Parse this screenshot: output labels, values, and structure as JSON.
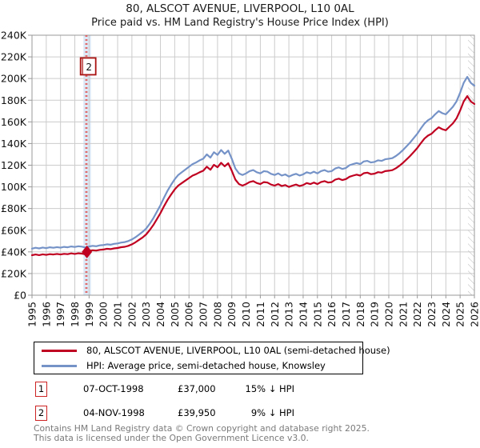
{
  "title": {
    "line1": "80, ALSCOT AVENUE, LIVERPOOL, L10 0AL",
    "line2": "Price paid vs. HM Land Registry's House Price Index (HPI)"
  },
  "chart_data": {
    "type": "line",
    "title": "80, ALSCOT AVENUE, LIVERPOOL, L10 0AL",
    "subtitle": "Price paid vs. HM Land Registry's House Price Index (HPI)",
    "xlim": [
      1995,
      2026
    ],
    "ylim": [
      0,
      240
    ],
    "x": {
      "start": 1995,
      "step": 0.25,
      "units": "year"
    },
    "y_units": "GBP thousands",
    "grid": true,
    "series": [
      {
        "name": "80, ALSCOT AVENUE, LIVERPOOL, L10 0AL (semi-detached house)",
        "color": "#c00020",
        "values": [
          36.9,
          37.6,
          37.0,
          37.7,
          37.2,
          37.9,
          37.6,
          38.1,
          37.6,
          38.2,
          37.9,
          38.6,
          38.1,
          38.7,
          38.4,
          37.7,
          41.0,
          41.5,
          41.2,
          41.9,
          42.2,
          42.8,
          42.5,
          43.2,
          43.6,
          44.3,
          44.7,
          45.6,
          47.0,
          48.8,
          51.1,
          53.3,
          56.1,
          60.2,
          64.7,
          70.2,
          75.7,
          82.1,
          88.0,
          93.0,
          97.6,
          101.2,
          103.5,
          105.8,
          108.1,
          110.4,
          111.7,
          113.5,
          114.9,
          118.6,
          115.8,
          120.4,
          118.1,
          122.2,
          119.0,
          121.8,
          114.9,
          106.7,
          102.6,
          101.2,
          102.6,
          104.4,
          105.3,
          103.5,
          102.6,
          104.4,
          104.0,
          102.1,
          101.2,
          102.6,
          100.8,
          101.7,
          99.9,
          101.2,
          102.1,
          100.8,
          101.7,
          103.5,
          102.6,
          104.0,
          102.6,
          104.4,
          105.3,
          104.0,
          104.4,
          106.7,
          107.6,
          106.3,
          107.2,
          109.4,
          110.4,
          111.3,
          110.4,
          112.6,
          113.1,
          111.7,
          112.2,
          113.6,
          113.1,
          114.5,
          114.9,
          115.4,
          117.2,
          119.5,
          122.2,
          125.4,
          128.6,
          132.2,
          135.9,
          140.4,
          144.6,
          147.3,
          149.1,
          152.3,
          155.0,
          153.2,
          152.3,
          155.5,
          158.7,
          163.3,
          170.5,
          178.8,
          183.8,
          178.8,
          176.5
        ]
      },
      {
        "name": "HPI: Average price, semi-detached house, Knowsley",
        "color": "#7693c8",
        "values": [
          43.0,
          43.8,
          43.2,
          44.0,
          43.4,
          44.2,
          43.8,
          44.4,
          43.9,
          44.6,
          44.2,
          45.0,
          44.5,
          45.2,
          44.8,
          44.0,
          45.0,
          45.6,
          45.2,
          46.0,
          46.3,
          47.0,
          46.6,
          47.4,
          47.8,
          48.6,
          49.0,
          50.0,
          51.5,
          53.5,
          56.0,
          58.5,
          61.5,
          66.0,
          71.0,
          77.0,
          83.0,
          90.0,
          96.5,
          102.0,
          107.0,
          111.0,
          113.5,
          116.0,
          118.5,
          121.0,
          122.5,
          124.5,
          126.0,
          130.0,
          127.0,
          132.0,
          129.5,
          134.0,
          130.5,
          133.5,
          126.0,
          117.0,
          112.5,
          111.0,
          112.5,
          114.5,
          115.5,
          113.5,
          112.5,
          114.5,
          114.0,
          112.0,
          111.0,
          112.5,
          110.5,
          111.5,
          109.5,
          111.0,
          112.0,
          110.5,
          111.5,
          113.5,
          112.5,
          114.0,
          112.5,
          114.5,
          115.5,
          114.0,
          114.5,
          117.0,
          118.0,
          116.5,
          117.5,
          120.0,
          121.0,
          122.0,
          121.0,
          123.5,
          124.0,
          122.5,
          123.0,
          124.5,
          124.0,
          125.5,
          126.0,
          126.5,
          128.5,
          131.0,
          134.0,
          137.5,
          141.0,
          145.0,
          149.0,
          154.0,
          158.5,
          161.5,
          163.5,
          167.0,
          170.0,
          168.0,
          167.0,
          170.5,
          174.0,
          179.0,
          187.0,
          196.0,
          201.5,
          196.0,
          193.5
        ]
      }
    ],
    "y_ticks": [
      {
        "v": 0,
        "label": "£0"
      },
      {
        "v": 20,
        "label": "£20K"
      },
      {
        "v": 40,
        "label": "£40K"
      },
      {
        "v": 60,
        "label": "£60K"
      },
      {
        "v": 80,
        "label": "£80K"
      },
      {
        "v": 100,
        "label": "£100K"
      },
      {
        "v": 120,
        "label": "£120K"
      },
      {
        "v": 140,
        "label": "£140K"
      },
      {
        "v": 160,
        "label": "£160K"
      },
      {
        "v": 180,
        "label": "£180K"
      },
      {
        "v": 200,
        "label": "£200K"
      },
      {
        "v": 220,
        "label": "£220K"
      },
      {
        "v": 240,
        "label": "£240K"
      }
    ],
    "x_ticks": [
      1995,
      1996,
      1997,
      1998,
      1999,
      2000,
      2001,
      2002,
      2003,
      2004,
      2005,
      2006,
      2007,
      2008,
      2009,
      2010,
      2011,
      2012,
      2013,
      2014,
      2015,
      2016,
      2017,
      2018,
      2019,
      2020,
      2021,
      2022,
      2023,
      2024,
      2025,
      2026
    ],
    "events": [
      {
        "n": "1",
        "x": 1998.77
      },
      {
        "n": "2",
        "x": 1998.85
      }
    ],
    "marker": {
      "x": 1998.85,
      "y": 39.95,
      "shape": "diamond",
      "color": "#c00020"
    },
    "annotation": {
      "label": "2",
      "x": 1998.85,
      "y_top_k": 219,
      "border": "#aa1111"
    },
    "future_band_start": 2025.55,
    "colors": {
      "grid": "#cccccc",
      "plot_border": "#999999",
      "event_line": "#e06666",
      "event_band": "#dce8f6",
      "hatch": "#bbbbbb"
    },
    "legend_position": "bottom"
  },
  "legend": {
    "items": [
      {
        "label": "80, ALSCOT AVENUE, LIVERPOOL, L10 0AL (semi-detached house)",
        "color": "#c00020"
      },
      {
        "label": "HPI: Average price, semi-detached house, Knowsley",
        "color": "#7693c8"
      }
    ]
  },
  "transactions": [
    {
      "n": "1",
      "date": "07-OCT-1998",
      "price": "£37,000",
      "hpi_diff": "15% ↓ HPI"
    },
    {
      "n": "2",
      "date": "04-NOV-1998",
      "price": "£39,950",
      "hpi_diff": "9% ↓ HPI"
    }
  ],
  "footer": {
    "line1": "Contains HM Land Registry data © Crown copyright and database right 2025.",
    "line2": "This data is licensed under the Open Government Licence v3.0."
  }
}
